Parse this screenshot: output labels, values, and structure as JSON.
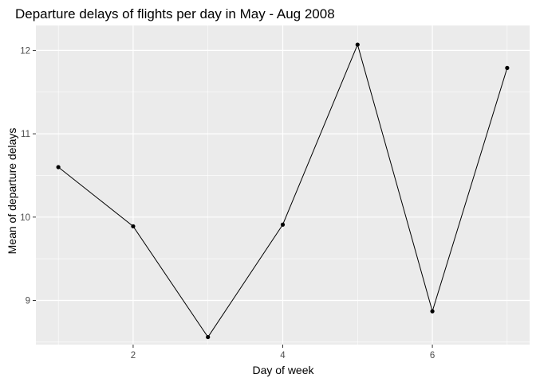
{
  "chart_data": {
    "type": "line",
    "title": "Departure delays of flights per day in May - Aug 2008",
    "xlabel": "Day of week",
    "ylabel": "Mean of departure delays",
    "xlim": [
      0.7,
      7.3
    ],
    "ylim": [
      8.47,
      12.3
    ],
    "x_ticks": [
      2,
      4,
      6
    ],
    "x_minor_ticks": [
      1,
      3,
      5,
      7
    ],
    "y_ticks": [
      9,
      10,
      11,
      12
    ],
    "y_minor_ticks": [
      8.5,
      9.5,
      10.5,
      11.5
    ],
    "grid": true,
    "legend": "none",
    "series": [
      {
        "x": [
          1,
          2,
          3,
          4,
          5,
          6,
          7
        ],
        "y": [
          10.6,
          9.89,
          8.56,
          9.91,
          12.07,
          8.87,
          11.79
        ]
      }
    ],
    "colors": {
      "panel_background": "#ebebeb",
      "grid": "#ffffff",
      "line": "#000000",
      "points": "#000000",
      "tick_text": "#4d4d4d"
    }
  }
}
